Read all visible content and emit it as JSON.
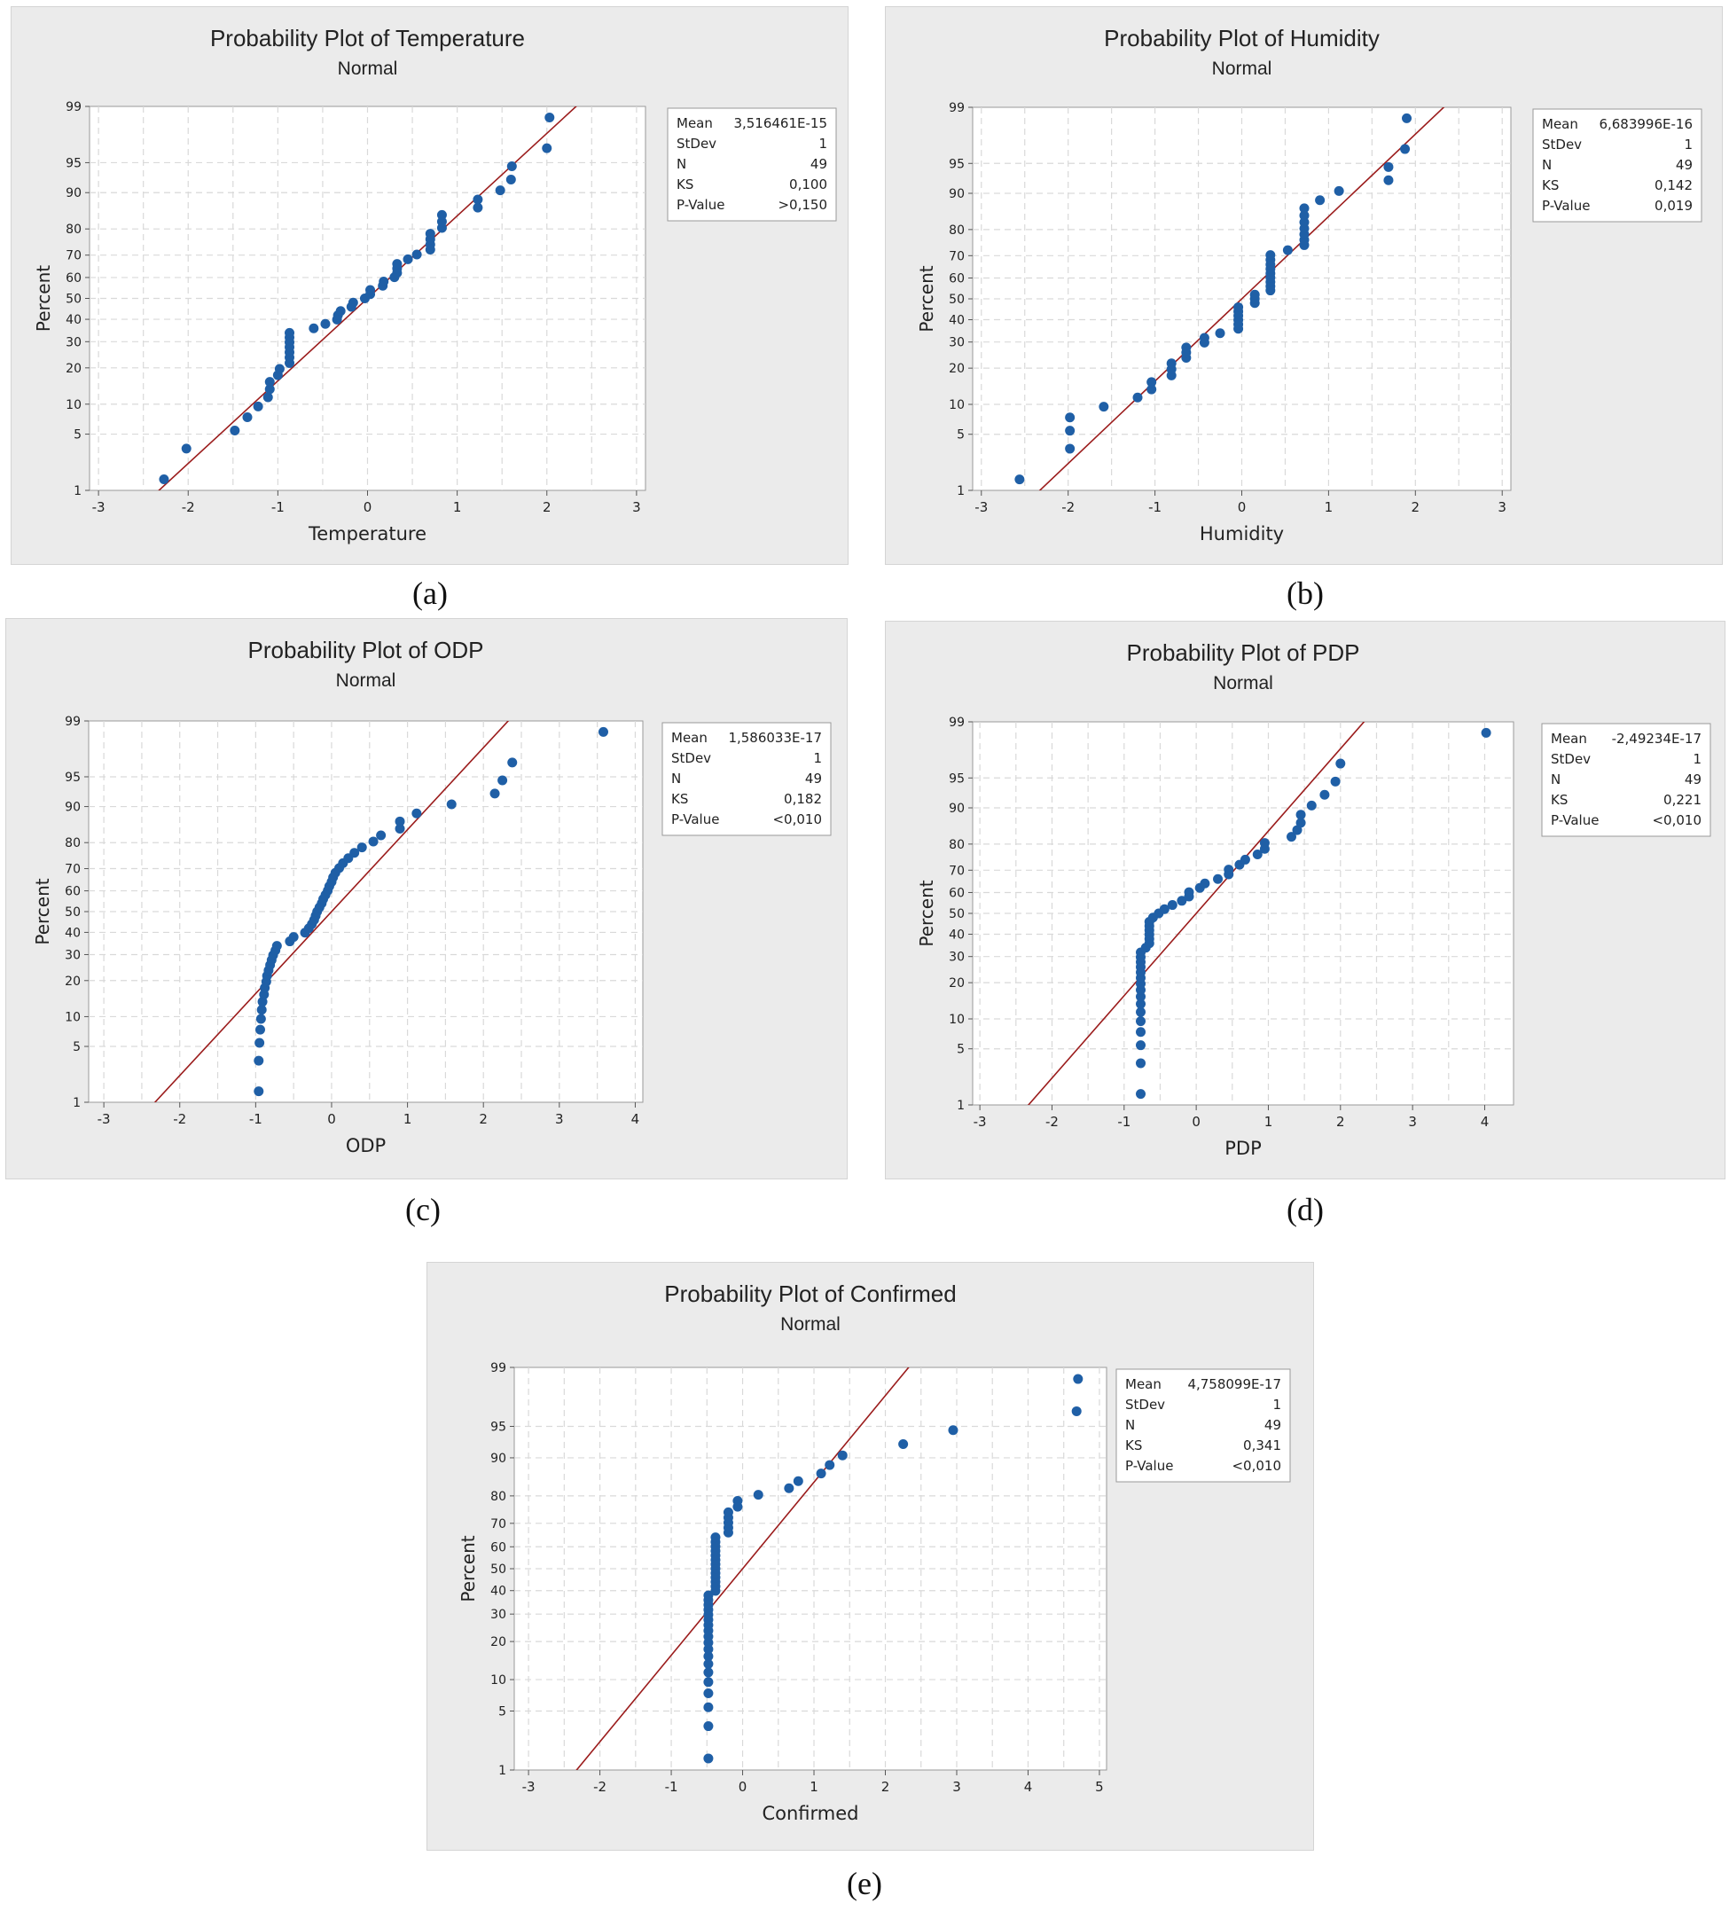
{
  "common": {
    "subtitle": "Normal",
    "ylabel": "Percent",
    "y_ticks": [
      1,
      5,
      10,
      20,
      30,
      40,
      50,
      60,
      70,
      80,
      90,
      95,
      99
    ],
    "colors": {
      "point": "#1f5fa6",
      "line": "#9b1c1c",
      "grid": "#d9d9d9",
      "plot_bg": "#ffffff",
      "panel_bg": "#ebebeb"
    }
  },
  "chart_data": [
    {
      "type": "scatter",
      "caption": "(a)",
      "title": "Probability Plot of Temperature",
      "subtitle": "Normal",
      "xlabel": "Temperature",
      "ylabel": "Percent",
      "xlim": [
        -3.1,
        3.1
      ],
      "x_ticks": [
        -3,
        -2,
        -1,
        0,
        1,
        2,
        3
      ],
      "line": [
        -2.33,
        2.33
      ],
      "stats": [
        {
          "label": "Mean",
          "value": "3,516461E-15"
        },
        {
          "label": "StDev",
          "value": "1"
        },
        {
          "label": "N",
          "value": "49"
        },
        {
          "label": "KS",
          "value": "0,100"
        },
        {
          "label": "P-Value",
          "value": ">0,150"
        }
      ],
      "x": [
        -2.27,
        -2.02,
        -1.48,
        -1.34,
        -1.22,
        -1.11,
        -1.09,
        -1.09,
        -1.0,
        -0.98,
        -0.87,
        -0.87,
        -0.87,
        -0.87,
        -0.87,
        -0.87,
        -0.87,
        -0.6,
        -0.47,
        -0.34,
        -0.33,
        -0.3,
        -0.18,
        -0.16,
        -0.03,
        0.03,
        0.03,
        0.17,
        0.18,
        0.3,
        0.33,
        0.33,
        0.33,
        0.45,
        0.55,
        0.7,
        0.7,
        0.7,
        0.7,
        0.83,
        0.83,
        0.83,
        1.23,
        1.23,
        1.48,
        1.6,
        1.61,
        2.0,
        2.03
      ]
    },
    {
      "type": "scatter",
      "caption": "(b)",
      "title": "Probability Plot of Humidity",
      "subtitle": "Normal",
      "xlabel": "Humidity",
      "ylabel": "Percent",
      "xlim": [
        -3.1,
        3.1
      ],
      "x_ticks": [
        -3,
        -2,
        -1,
        0,
        1,
        2,
        3
      ],
      "line": [
        -2.33,
        2.33
      ],
      "stats": [
        {
          "label": "Mean",
          "value": "6,683996E-16"
        },
        {
          "label": "StDev",
          "value": "1"
        },
        {
          "label": "N",
          "value": "49"
        },
        {
          "label": "KS",
          "value": "0,142"
        },
        {
          "label": "P-Value",
          "value": "0,019"
        }
      ],
      "x": [
        -2.56,
        -1.98,
        -1.98,
        -1.98,
        -1.59,
        -1.2,
        -1.04,
        -1.04,
        -0.81,
        -0.81,
        -0.81,
        -0.64,
        -0.64,
        -0.64,
        -0.43,
        -0.43,
        -0.25,
        -0.04,
        -0.04,
        -0.04,
        -0.04,
        -0.04,
        -0.04,
        0.15,
        0.15,
        0.15,
        0.33,
        0.33,
        0.33,
        0.33,
        0.33,
        0.33,
        0.33,
        0.33,
        0.33,
        0.53,
        0.72,
        0.72,
        0.72,
        0.72,
        0.72,
        0.72,
        0.72,
        0.9,
        1.12,
        1.69,
        1.69,
        1.88,
        1.9
      ]
    },
    {
      "type": "scatter",
      "caption": "(c)",
      "title": "Probability Plot of ODP",
      "subtitle": "Normal",
      "xlabel": "ODP",
      "ylabel": "Percent",
      "xlim": [
        -3.2,
        4.1
      ],
      "x_ticks": [
        -3,
        -2,
        -1,
        0,
        1,
        2,
        3,
        4
      ],
      "line": [
        -2.33,
        2.33
      ],
      "stats": [
        {
          "label": "Mean",
          "value": "1,586033E-17"
        },
        {
          "label": "StDev",
          "value": "1"
        },
        {
          "label": "N",
          "value": "49"
        },
        {
          "label": "KS",
          "value": "0,182"
        },
        {
          "label": "P-Value",
          "value": "<0,010"
        }
      ],
      "x": [
        -0.96,
        -0.96,
        -0.95,
        -0.94,
        -0.93,
        -0.92,
        -0.91,
        -0.89,
        -0.88,
        -0.86,
        -0.85,
        -0.83,
        -0.81,
        -0.79,
        -0.77,
        -0.74,
        -0.72,
        -0.55,
        -0.5,
        -0.35,
        -0.3,
        -0.26,
        -0.23,
        -0.21,
        -0.19,
        -0.16,
        -0.13,
        -0.11,
        -0.08,
        -0.05,
        -0.03,
        0.0,
        0.02,
        0.05,
        0.1,
        0.15,
        0.22,
        0.3,
        0.4,
        0.55,
        0.65,
        0.9,
        0.9,
        1.12,
        1.58,
        2.15,
        2.25,
        2.38,
        3.58
      ]
    },
    {
      "type": "scatter",
      "caption": "(d)",
      "title": "Probability Plot of PDP",
      "subtitle": "Normal",
      "xlabel": "PDP",
      "ylabel": "Percent",
      "xlim": [
        -3.1,
        4.4
      ],
      "x_ticks": [
        -3,
        -2,
        -1,
        0,
        1,
        2,
        3,
        4
      ],
      "line": [
        -2.33,
        2.33
      ],
      "stats": [
        {
          "label": "Mean",
          "value": "-2,49234E-17"
        },
        {
          "label": "StDev",
          "value": "1"
        },
        {
          "label": "N",
          "value": "49"
        },
        {
          "label": "KS",
          "value": "0,221"
        },
        {
          "label": "P-Value",
          "value": "<0,010"
        }
      ],
      "x": [
        -0.77,
        -0.77,
        -0.77,
        -0.77,
        -0.77,
        -0.77,
        -0.77,
        -0.77,
        -0.77,
        -0.77,
        -0.77,
        -0.77,
        -0.77,
        -0.77,
        -0.77,
        -0.77,
        -0.7,
        -0.65,
        -0.65,
        -0.65,
        -0.65,
        -0.65,
        -0.65,
        -0.6,
        -0.52,
        -0.44,
        -0.33,
        -0.2,
        -0.1,
        -0.1,
        0.05,
        0.12,
        0.3,
        0.45,
        0.45,
        0.6,
        0.68,
        0.85,
        0.95,
        0.95,
        1.32,
        1.4,
        1.45,
        1.45,
        1.6,
        1.78,
        1.93,
        2.0,
        4.02
      ]
    },
    {
      "type": "scatter",
      "caption": "(e)",
      "title": "Probability Plot of Confirmed",
      "subtitle": "Normal",
      "xlabel": "Confirmed",
      "ylabel": "Percent",
      "xlim": [
        -3.2,
        5.1
      ],
      "x_ticks": [
        -3,
        -2,
        -1,
        0,
        1,
        2,
        3,
        4,
        5
      ],
      "line": [
        -2.33,
        2.33
      ],
      "stats": [
        {
          "label": "Mean",
          "value": "4,758099E-17"
        },
        {
          "label": "StDev",
          "value": "1"
        },
        {
          "label": "N",
          "value": "49"
        },
        {
          "label": "KS",
          "value": "0,341"
        },
        {
          "label": "P-Value",
          "value": "<0,010"
        }
      ],
      "x": [
        -0.48,
        -0.48,
        -0.48,
        -0.48,
        -0.48,
        -0.48,
        -0.48,
        -0.48,
        -0.48,
        -0.48,
        -0.48,
        -0.48,
        -0.48,
        -0.48,
        -0.48,
        -0.48,
        -0.48,
        -0.48,
        -0.48,
        -0.38,
        -0.38,
        -0.38,
        -0.38,
        -0.38,
        -0.38,
        -0.38,
        -0.38,
        -0.38,
        -0.38,
        -0.38,
        -0.38,
        -0.38,
        -0.2,
        -0.2,
        -0.2,
        -0.2,
        -0.2,
        -0.07,
        -0.07,
        0.22,
        0.65,
        0.78,
        1.1,
        1.22,
        1.4,
        2.25,
        2.95,
        4.68,
        4.7
      ]
    }
  ]
}
